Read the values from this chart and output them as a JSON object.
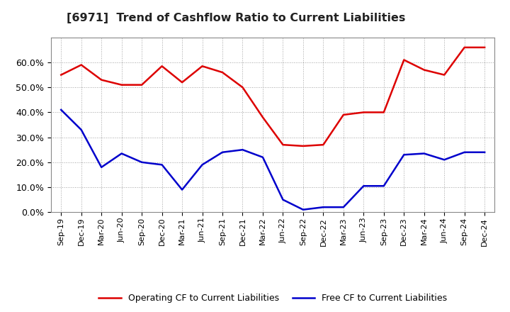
{
  "title": "[6971]  Trend of Cashflow Ratio to Current Liabilities",
  "x_labels": [
    "Sep-19",
    "Dec-19",
    "Mar-20",
    "Jun-20",
    "Sep-20",
    "Dec-20",
    "Mar-21",
    "Jun-21",
    "Sep-21",
    "Dec-21",
    "Mar-22",
    "Jun-22",
    "Sep-22",
    "Dec-22",
    "Mar-23",
    "Jun-23",
    "Sep-23",
    "Dec-23",
    "Mar-24",
    "Jun-24",
    "Sep-24",
    "Dec-24"
  ],
  "operating_cf": [
    0.55,
    0.59,
    0.53,
    0.51,
    0.51,
    0.585,
    0.52,
    0.585,
    0.56,
    0.5,
    0.38,
    0.27,
    0.265,
    0.27,
    0.39,
    0.4,
    0.4,
    0.61,
    0.57,
    0.55,
    0.66,
    0.66
  ],
  "free_cf": [
    0.41,
    0.33,
    0.18,
    0.235,
    0.2,
    0.19,
    0.09,
    0.19,
    0.24,
    0.25,
    0.22,
    0.05,
    0.01,
    0.02,
    0.02,
    0.105,
    0.105,
    0.23,
    0.235,
    0.21,
    0.24,
    0.24
  ],
  "operating_cf_color": "#dd0000",
  "free_cf_color": "#0000cc",
  "ylim": [
    0.0,
    0.7
  ],
  "yticks": [
    0.0,
    0.1,
    0.2,
    0.3,
    0.4,
    0.5,
    0.6
  ],
  "background_color": "#ffffff",
  "grid_color": "#999999",
  "legend_labels": [
    "Operating CF to Current Liabilities",
    "Free CF to Current Liabilities"
  ]
}
